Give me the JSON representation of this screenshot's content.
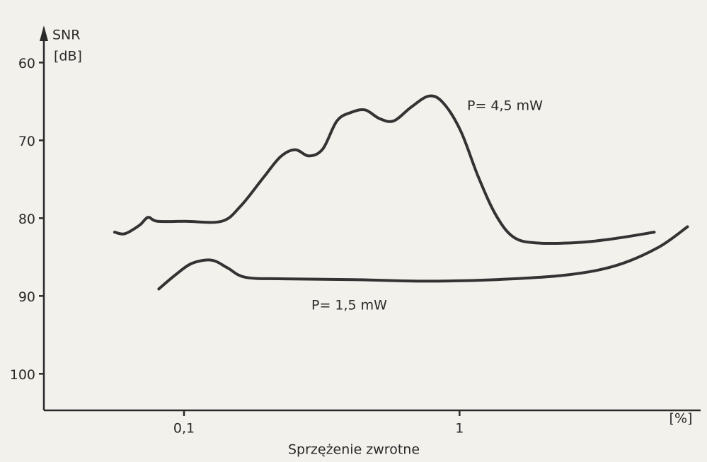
{
  "chart_data": {
    "type": "line",
    "ylabel": [
      "SNR",
      "[dB]"
    ],
    "xlabel": "Sprzężenie zwrotne",
    "xunit": "[%]",
    "xscale": "log",
    "yinverted": true,
    "xlim": [
      0.031,
      7.5
    ],
    "ylim": [
      55.6,
      104.7
    ],
    "xticks": [
      {
        "value": 0.1,
        "label": "0,1"
      },
      1
    ],
    "yticks": [
      60,
      70,
      80,
      90,
      100
    ],
    "series": [
      {
        "name": "P= 4,5 mW",
        "color": "#333333",
        "x": [
          0.056,
          0.061,
          0.069,
          0.074,
          0.08,
          0.101,
          0.137,
          0.161,
          0.194,
          0.224,
          0.253,
          0.284,
          0.319,
          0.359,
          0.405,
          0.455,
          0.512,
          0.577,
          0.669,
          0.776,
          0.873,
          1.01,
          1.17,
          1.36,
          1.58,
          1.94,
          2.76,
          3.69,
          5.09
        ],
        "values": [
          81.8,
          82.0,
          80.9,
          79.9,
          80.4,
          80.4,
          80.4,
          78.4,
          74.8,
          72.1,
          71.2,
          72.0,
          71.1,
          67.5,
          66.4,
          66.1,
          67.2,
          67.5,
          65.7,
          64.3,
          65.2,
          68.8,
          74.7,
          79.7,
          82.5,
          83.2,
          83.1,
          82.6,
          81.8
        ]
      },
      {
        "name": "P= 1,5 mW",
        "color": "#333333",
        "x": [
          0.081,
          0.093,
          0.107,
          0.126,
          0.144,
          0.167,
          0.231,
          0.415,
          0.753,
          1.36,
          2.45,
          3.69,
          5.24,
          6.72
        ],
        "values": [
          89.1,
          87.3,
          85.8,
          85.4,
          86.4,
          87.6,
          87.8,
          87.9,
          88.1,
          87.9,
          87.3,
          86.1,
          83.8,
          81.1
        ]
      }
    ]
  }
}
